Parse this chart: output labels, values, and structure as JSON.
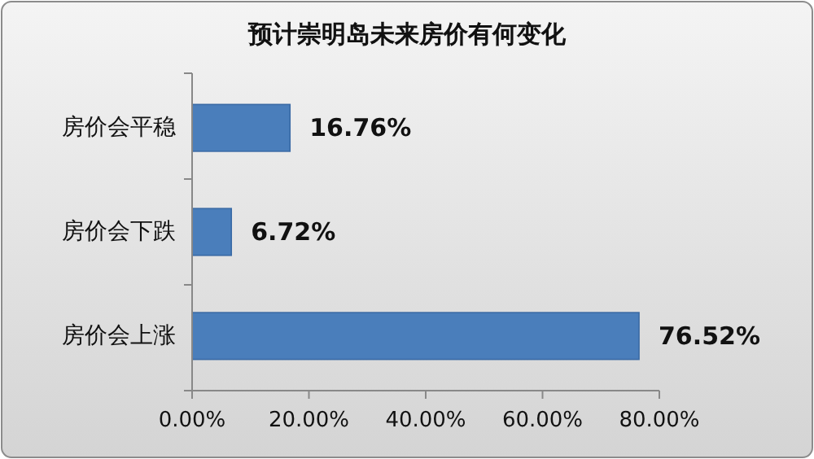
{
  "chart_data": {
    "type": "bar",
    "orientation": "horizontal",
    "title": "预计崇明岛未来房价有何变化",
    "categories": [
      "房价会平稳",
      "房价会下跌",
      "房价会上涨"
    ],
    "values": [
      16.76,
      6.72,
      76.52
    ],
    "value_labels": [
      "16.76%",
      "6.72%",
      "76.52%"
    ],
    "color": "#4a7ebb",
    "xlim": [
      0,
      80
    ],
    "xticks": [
      {
        "value": 0,
        "label": "0.00%"
      },
      {
        "value": 20,
        "label": "20.00%"
      },
      {
        "value": 40,
        "label": "40.00%"
      },
      {
        "value": 60,
        "label": "60.00%"
      },
      {
        "value": 80,
        "label": "80.00%"
      }
    ],
    "grid": false
  }
}
